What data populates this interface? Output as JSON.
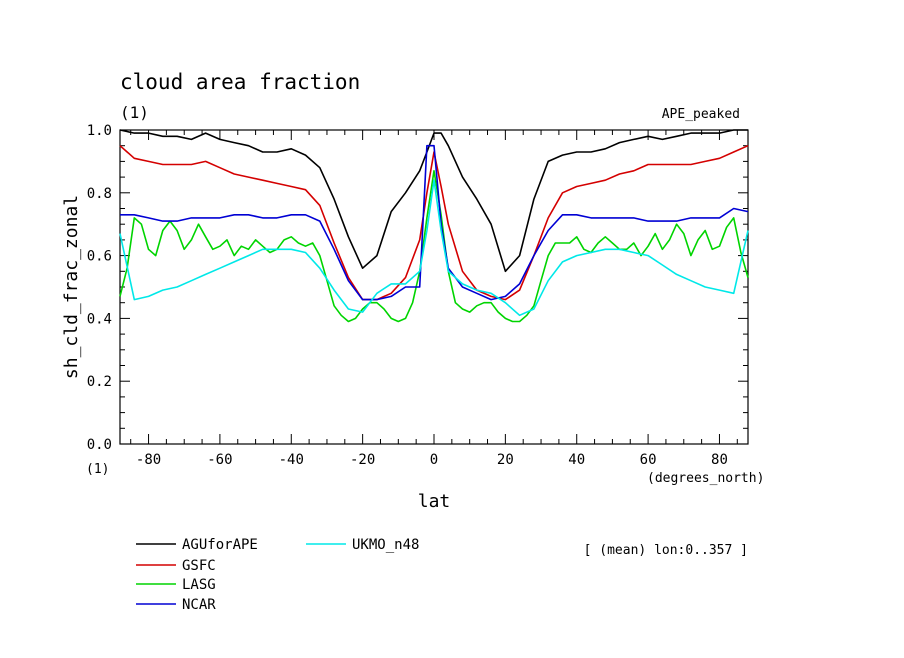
{
  "chart_data": {
    "type": "line",
    "title": "cloud area fraction",
    "units_label": "(1)",
    "experiment_label": "APE_peaked",
    "xlabel": "lat",
    "xunits": "(degrees_north)",
    "ylabel": "sh_cld_frac_zonal",
    "yunits": "(1)",
    "xlim": [
      -88,
      88
    ],
    "ylim": [
      0.0,
      1.0
    ],
    "xticks": [
      -80,
      -60,
      -40,
      -20,
      0,
      20,
      40,
      60,
      80
    ],
    "yticks": [
      0.0,
      0.2,
      0.4,
      0.6,
      0.8,
      1.0
    ],
    "ytick_labels": [
      "0.0",
      "0.2",
      "0.4",
      "0.6",
      "0.8",
      "1.0"
    ],
    "note": "[ (mean) lon:0..357 ]",
    "series": [
      {
        "name": "AGUforAPE",
        "color": "#000000",
        "x": [
          -88,
          -84,
          -80,
          -76,
          -72,
          -68,
          -64,
          -60,
          -56,
          -52,
          -48,
          -44,
          -40,
          -36,
          -32,
          -28,
          -24,
          -20,
          -16,
          -12,
          -8,
          -4,
          -2,
          0,
          2,
          4,
          8,
          12,
          16,
          20,
          24,
          28,
          32,
          36,
          40,
          44,
          48,
          52,
          56,
          60,
          64,
          68,
          72,
          76,
          80,
          84,
          88
        ],
        "values": [
          1.0,
          0.99,
          0.99,
          0.98,
          0.98,
          0.97,
          0.99,
          0.97,
          0.96,
          0.95,
          0.93,
          0.93,
          0.94,
          0.92,
          0.88,
          0.78,
          0.66,
          0.56,
          0.6,
          0.74,
          0.8,
          0.87,
          0.93,
          0.99,
          0.99,
          0.95,
          0.85,
          0.78,
          0.7,
          0.55,
          0.6,
          0.78,
          0.9,
          0.92,
          0.93,
          0.93,
          0.94,
          0.96,
          0.97,
          0.98,
          0.97,
          0.98,
          0.99,
          0.99,
          0.99,
          1.0,
          1.0
        ]
      },
      {
        "name": "GSFC",
        "color": "#d40000",
        "x": [
          -88,
          -84,
          -80,
          -76,
          -72,
          -68,
          -64,
          -60,
          -56,
          -52,
          -48,
          -44,
          -40,
          -36,
          -32,
          -28,
          -24,
          -20,
          -16,
          -12,
          -8,
          -4,
          -2,
          0,
          2,
          4,
          8,
          12,
          16,
          20,
          24,
          28,
          32,
          36,
          40,
          44,
          48,
          52,
          56,
          60,
          64,
          68,
          72,
          76,
          80,
          84,
          88
        ],
        "values": [
          0.95,
          0.91,
          0.9,
          0.89,
          0.89,
          0.89,
          0.9,
          0.88,
          0.86,
          0.85,
          0.84,
          0.83,
          0.82,
          0.81,
          0.76,
          0.64,
          0.53,
          0.46,
          0.46,
          0.48,
          0.53,
          0.65,
          0.8,
          0.93,
          0.82,
          0.7,
          0.55,
          0.49,
          0.47,
          0.46,
          0.49,
          0.6,
          0.72,
          0.8,
          0.82,
          0.83,
          0.84,
          0.86,
          0.87,
          0.89,
          0.89,
          0.89,
          0.89,
          0.9,
          0.91,
          0.93,
          0.95
        ]
      },
      {
        "name": "LASG",
        "color": "#00d400",
        "x": [
          -88,
          -86,
          -84,
          -82,
          -80,
          -78,
          -76,
          -74,
          -72,
          -70,
          -68,
          -66,
          -64,
          -62,
          -60,
          -58,
          -56,
          -54,
          -52,
          -50,
          -48,
          -46,
          -44,
          -42,
          -40,
          -38,
          -36,
          -34,
          -32,
          -30,
          -28,
          -26,
          -24,
          -22,
          -20,
          -18,
          -16,
          -14,
          -12,
          -10,
          -8,
          -6,
          -4,
          -2,
          0,
          2,
          4,
          6,
          8,
          10,
          12,
          14,
          16,
          18,
          20,
          22,
          24,
          26,
          28,
          30,
          32,
          34,
          36,
          38,
          40,
          42,
          44,
          46,
          48,
          50,
          52,
          54,
          56,
          58,
          60,
          62,
          64,
          66,
          68,
          70,
          72,
          74,
          76,
          78,
          80,
          82,
          84,
          86,
          88
        ],
        "values": [
          0.47,
          0.56,
          0.72,
          0.7,
          0.62,
          0.6,
          0.68,
          0.71,
          0.68,
          0.62,
          0.65,
          0.7,
          0.66,
          0.62,
          0.63,
          0.65,
          0.6,
          0.63,
          0.62,
          0.65,
          0.63,
          0.61,
          0.62,
          0.65,
          0.66,
          0.64,
          0.63,
          0.64,
          0.6,
          0.52,
          0.44,
          0.41,
          0.39,
          0.4,
          0.43,
          0.45,
          0.45,
          0.43,
          0.4,
          0.39,
          0.4,
          0.45,
          0.55,
          0.72,
          0.87,
          0.73,
          0.55,
          0.45,
          0.43,
          0.42,
          0.44,
          0.45,
          0.45,
          0.42,
          0.4,
          0.39,
          0.39,
          0.41,
          0.44,
          0.52,
          0.6,
          0.64,
          0.64,
          0.64,
          0.66,
          0.62,
          0.61,
          0.64,
          0.66,
          0.64,
          0.62,
          0.62,
          0.64,
          0.6,
          0.63,
          0.67,
          0.62,
          0.65,
          0.7,
          0.67,
          0.6,
          0.65,
          0.68,
          0.62,
          0.63,
          0.69,
          0.72,
          0.61,
          0.53
        ]
      },
      {
        "name": "NCAR",
        "color": "#0000d4",
        "x": [
          -88,
          -84,
          -80,
          -76,
          -72,
          -68,
          -64,
          -60,
          -56,
          -52,
          -48,
          -44,
          -40,
          -36,
          -32,
          -28,
          -24,
          -20,
          -16,
          -12,
          -8,
          -4,
          -2,
          0,
          2,
          4,
          8,
          12,
          16,
          20,
          24,
          28,
          32,
          36,
          40,
          44,
          48,
          52,
          56,
          60,
          64,
          68,
          72,
          76,
          80,
          84,
          88
        ],
        "values": [
          0.73,
          0.73,
          0.72,
          0.71,
          0.71,
          0.72,
          0.72,
          0.72,
          0.73,
          0.73,
          0.72,
          0.72,
          0.73,
          0.73,
          0.71,
          0.62,
          0.52,
          0.46,
          0.46,
          0.47,
          0.5,
          0.5,
          0.95,
          0.95,
          0.7,
          0.56,
          0.5,
          0.48,
          0.46,
          0.47,
          0.51,
          0.6,
          0.68,
          0.73,
          0.73,
          0.72,
          0.72,
          0.72,
          0.72,
          0.71,
          0.71,
          0.71,
          0.72,
          0.72,
          0.72,
          0.75,
          0.74
        ]
      },
      {
        "name": "UKMO_n48",
        "color": "#00e8e8",
        "x": [
          -88,
          -84,
          -80,
          -76,
          -72,
          -68,
          -64,
          -60,
          -56,
          -52,
          -48,
          -44,
          -40,
          -36,
          -32,
          -28,
          -24,
          -20,
          -16,
          -12,
          -8,
          -4,
          -2,
          0,
          2,
          4,
          8,
          12,
          16,
          20,
          24,
          28,
          32,
          36,
          40,
          44,
          48,
          52,
          56,
          60,
          64,
          68,
          72,
          76,
          80,
          84,
          88
        ],
        "values": [
          0.67,
          0.46,
          0.47,
          0.49,
          0.5,
          0.52,
          0.54,
          0.56,
          0.58,
          0.6,
          0.62,
          0.62,
          0.62,
          0.61,
          0.56,
          0.49,
          0.43,
          0.42,
          0.48,
          0.51,
          0.51,
          0.55,
          0.68,
          0.84,
          0.68,
          0.55,
          0.51,
          0.49,
          0.48,
          0.45,
          0.41,
          0.43,
          0.52,
          0.58,
          0.6,
          0.61,
          0.62,
          0.62,
          0.61,
          0.6,
          0.57,
          0.54,
          0.52,
          0.5,
          0.49,
          0.48,
          0.68
        ]
      }
    ]
  }
}
